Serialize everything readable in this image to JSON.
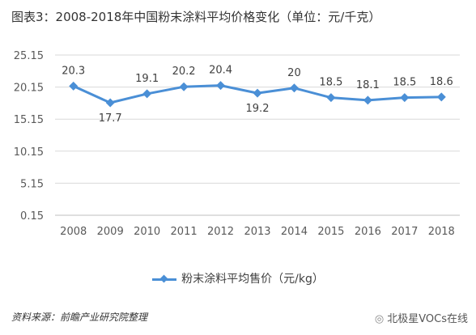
{
  "title": "图表3：2008-2018年中国粉末涂料平均价格变化（单位：元/千克）",
  "legend_label": "粉末涂料平均售价（元/kg）",
  "source": "资料来源：前瞻产业研究院整理",
  "watermark": "北极星VOCs在线",
  "colors": {
    "series": "#4a8fd6",
    "grid": "#d9d9d9",
    "axis": "#bfbfbf"
  },
  "chart_data": {
    "type": "line",
    "title": "图表3：2008-2018年中国粉末涂料平均价格变化（单位：元/千克）",
    "x": [
      "2008",
      "2009",
      "2010",
      "2011",
      "2012",
      "2013",
      "2014",
      "2015",
      "2016",
      "2017",
      "2018"
    ],
    "series": [
      {
        "name": "粉末涂料平均售价（元/kg）",
        "values": [
          20.3,
          17.7,
          19.1,
          20.2,
          20.4,
          19.2,
          20,
          18.5,
          18.1,
          18.5,
          18.6
        ]
      }
    ],
    "yticks": [
      "0.15",
      "5.15",
      "10.15",
      "15.15",
      "20.15",
      "25.15"
    ],
    "ylim": [
      0.15,
      25.15
    ],
    "grid": true,
    "legend": "bottom",
    "marker": "diamond"
  }
}
